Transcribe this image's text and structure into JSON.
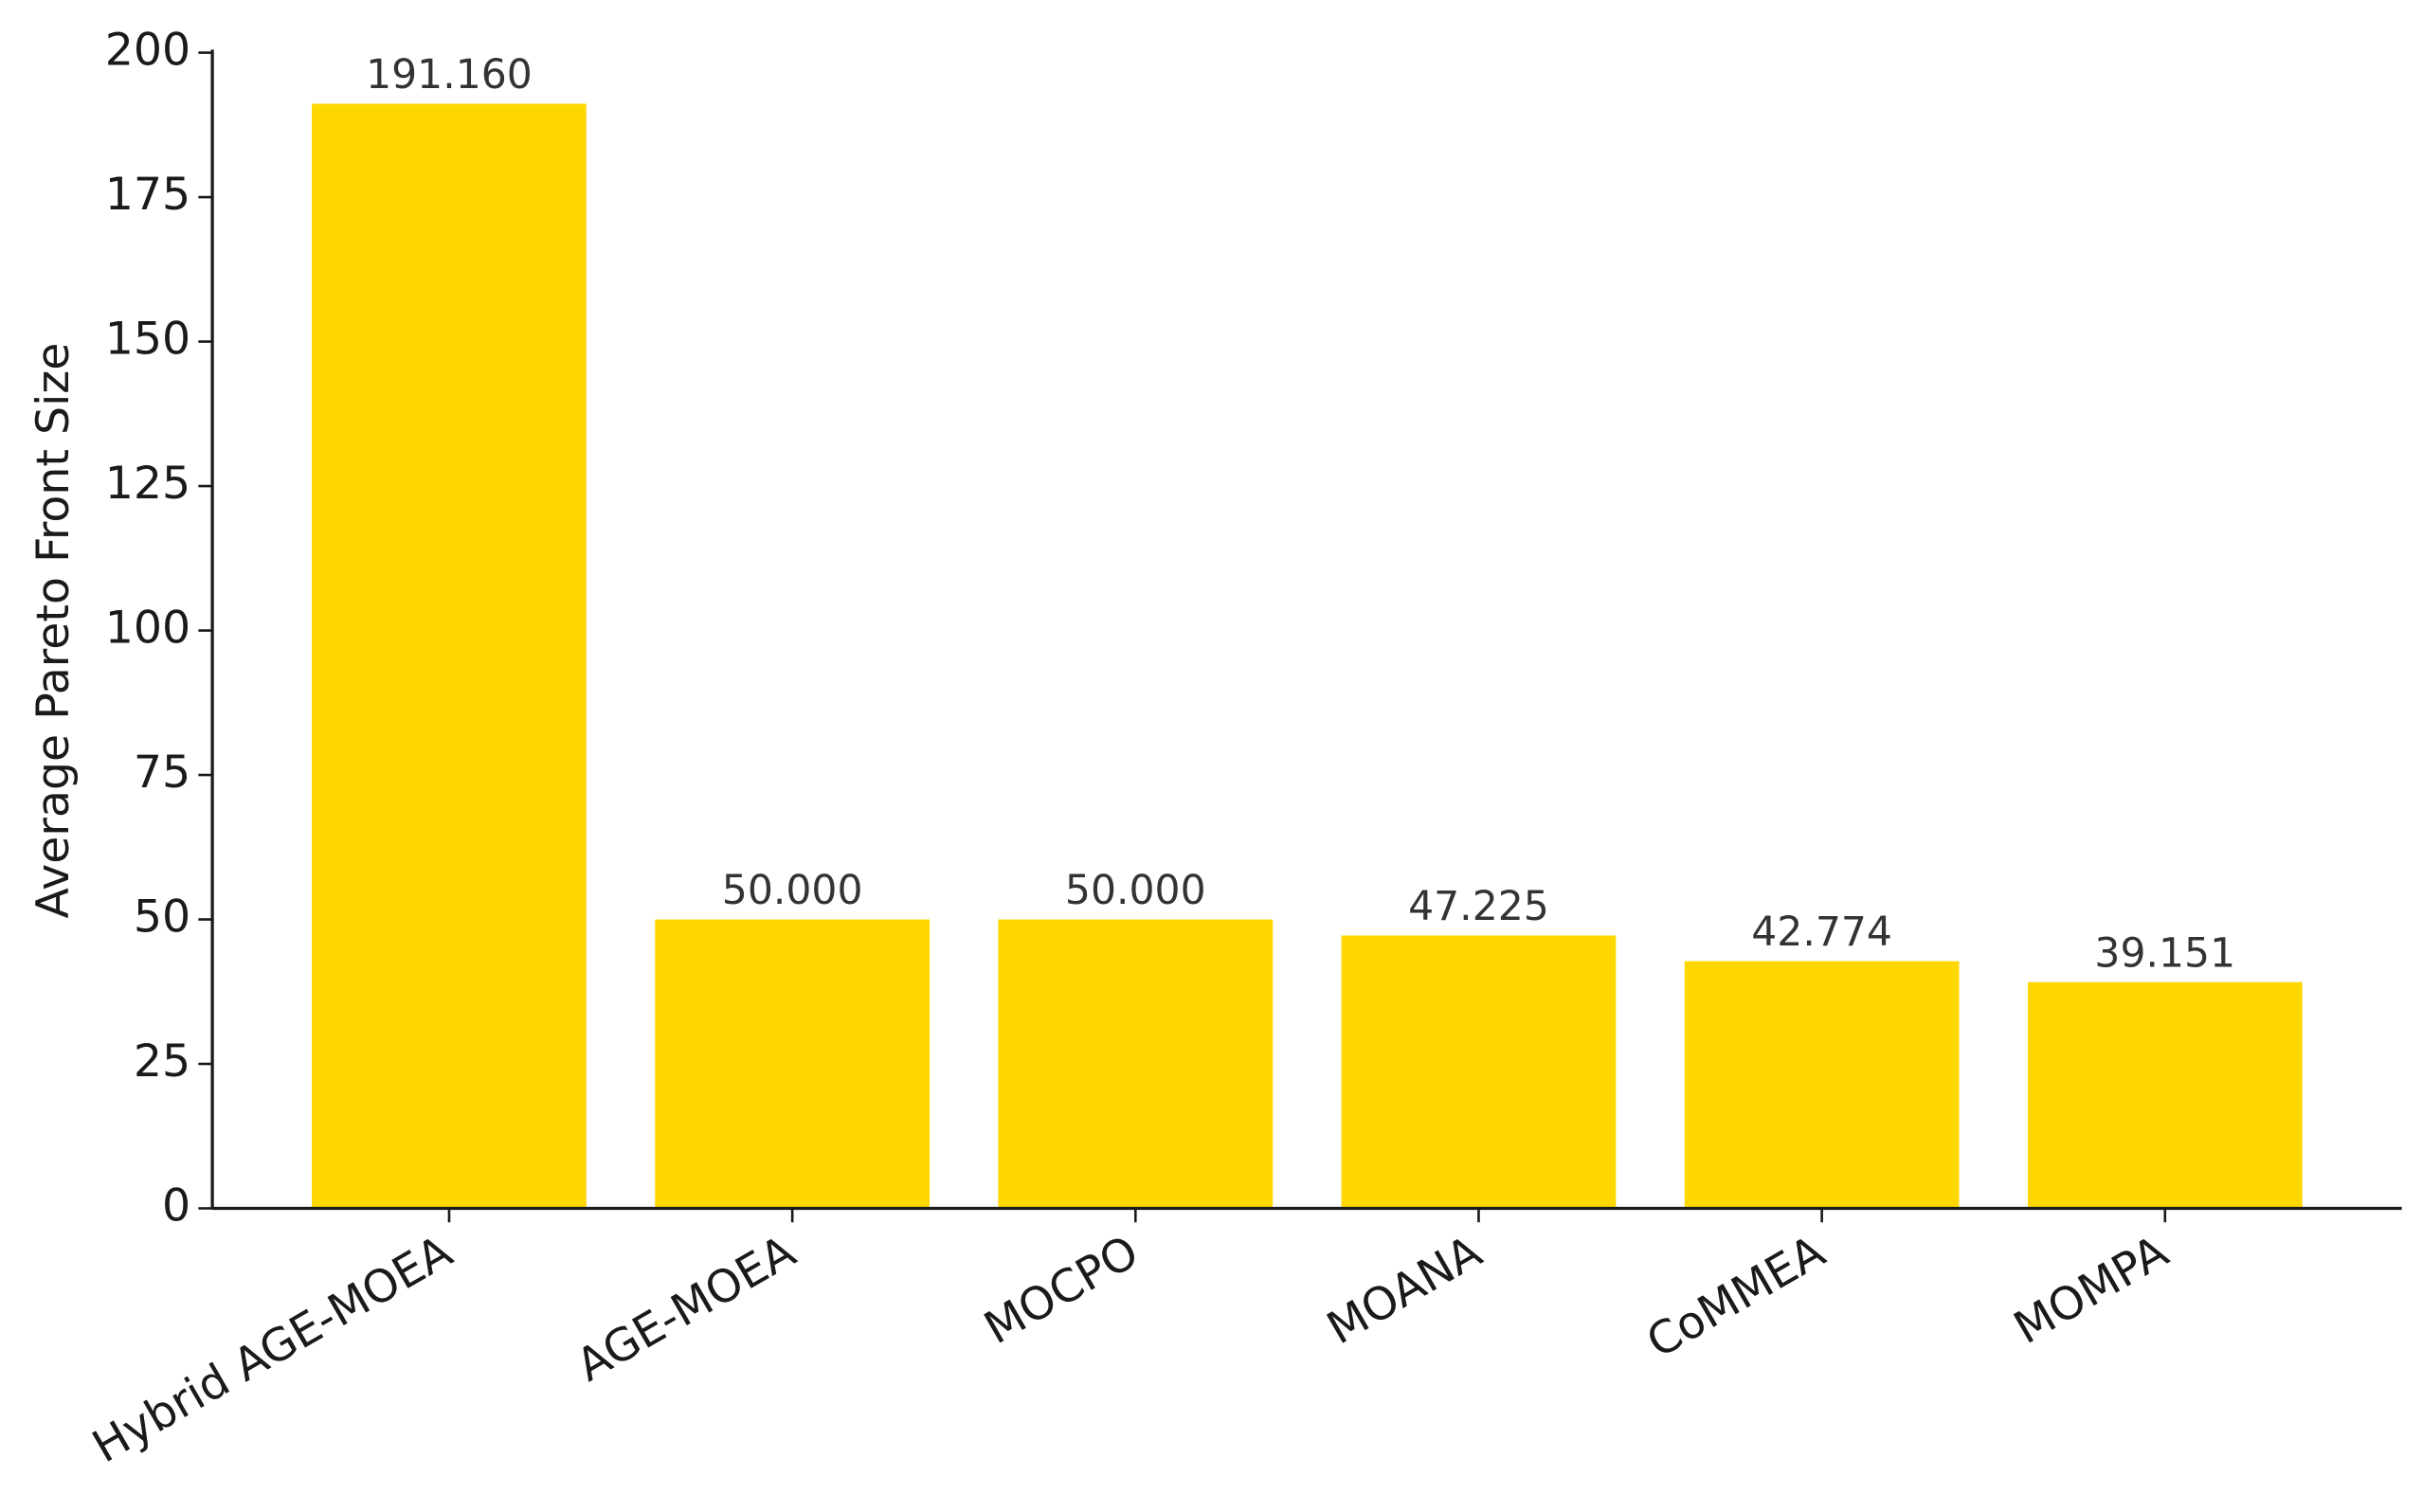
{
  "chart_data": {
    "type": "bar",
    "categories": [
      "Hybrid AGE-MOEA",
      "AGE-MOEA",
      "MOCPO",
      "MOANA",
      "CoMMEA",
      "MOMPA"
    ],
    "values": [
      191.16,
      50,
      50,
      47.225,
      42.774,
      39.151
    ],
    "value_labels": [
      "191.160",
      "50.000",
      "50.000",
      "47.225",
      "42.774",
      "39.151"
    ],
    "color": "#ffd700",
    "ylabel": "Average Pareto Front Size",
    "ylim": [
      0,
      200
    ],
    "yticks": [
      0,
      25,
      50,
      75,
      100,
      125,
      150,
      175,
      200
    ],
    "grid": false
  }
}
